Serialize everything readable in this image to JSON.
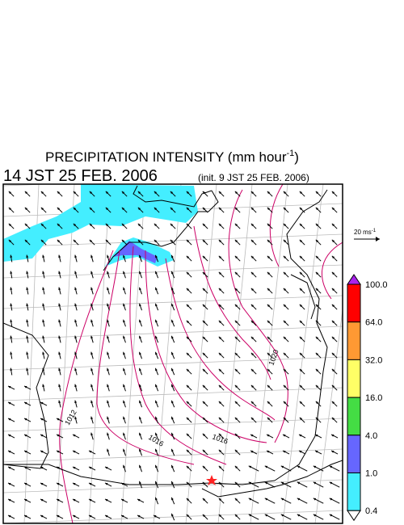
{
  "header": {
    "title": "PRECIPITATION INTENSITY (mm hour",
    "title_superscript": "-1",
    "title_end": ")",
    "valid_time": "14 JST 25 FEB. 2006",
    "init_time": "(init. 9 JST 25 FEB. 2006)"
  },
  "wind_scale": {
    "label": "20 ms",
    "label_superscript": "-1"
  },
  "colorbar": {
    "labels": [
      "100.0",
      "64.0",
      "32.0",
      "16.0",
      "4.0",
      "1.0",
      "0.4"
    ],
    "colors": [
      "#ff0000",
      "#ff9933",
      "#ffff66",
      "#44dd44",
      "#6666ff",
      "#44eeff"
    ],
    "over_color": "#aa22ee",
    "under_color": "#ffffff"
  },
  "map": {
    "isobar_labels": [
      "1012",
      "1016",
      "1016",
      "1020"
    ]
  }
}
